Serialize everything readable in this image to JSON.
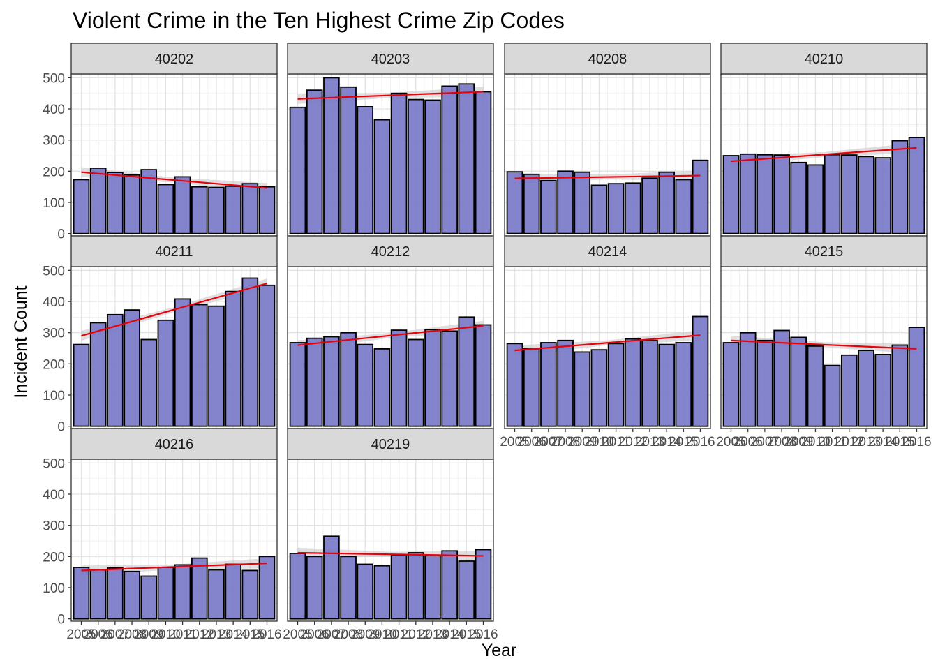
{
  "chart_data": {
    "type": "bar",
    "title": "Violent Crime in the Ten Highest Crime Zip Codes",
    "xlabel": "Year",
    "ylabel": "Incident Count",
    "ylim": [
      0,
      500
    ],
    "y_ticks": [
      0,
      100,
      200,
      300,
      400,
      500
    ],
    "x": [
      2005,
      2006,
      2007,
      2008,
      2009,
      2010,
      2011,
      2012,
      2013,
      2014,
      2015,
      2016
    ],
    "x_tick_labels": [
      "2005",
      "2006",
      "2007",
      "2008",
      "2009",
      "2010",
      "2011",
      "2012",
      "2013",
      "2014",
      "2015",
      "2016"
    ],
    "grid": true,
    "bar_fill": "#7a7ac9",
    "bar_outline": "#000000",
    "trend_color": "#e8000b",
    "band_color": "#c9c9c9",
    "strip_fill": "#d9d9d9",
    "panels": [
      {
        "name": "40202",
        "values": [
          173,
          210,
          196,
          188,
          205,
          157,
          182,
          150,
          148,
          152,
          160,
          150
        ],
        "trend": [
          197,
          146
        ]
      },
      {
        "name": "40203",
        "values": [
          405,
          460,
          500,
          470,
          407,
          365,
          450,
          430,
          428,
          473,
          480,
          455
        ],
        "trend": [
          432,
          455
        ]
      },
      {
        "name": "40208",
        "values": [
          198,
          190,
          170,
          200,
          197,
          155,
          160,
          162,
          178,
          197,
          173,
          235
        ],
        "trend": [
          177,
          186
        ]
      },
      {
        "name": "40210",
        "values": [
          250,
          255,
          253,
          252,
          228,
          220,
          253,
          252,
          247,
          243,
          298,
          308
        ],
        "trend": [
          232,
          275
        ]
      },
      {
        "name": "40211",
        "values": [
          262,
          332,
          358,
          373,
          278,
          340,
          408,
          390,
          385,
          432,
          475,
          452
        ],
        "trend": [
          290,
          458
        ]
      },
      {
        "name": "40212",
        "values": [
          268,
          282,
          287,
          300,
          262,
          248,
          308,
          278,
          310,
          305,
          350,
          325
        ],
        "trend": [
          260,
          322
        ]
      },
      {
        "name": "40214",
        "values": [
          265,
          248,
          268,
          275,
          238,
          245,
          265,
          280,
          275,
          262,
          268,
          352
        ],
        "trend": [
          243,
          292
        ]
      },
      {
        "name": "40215",
        "values": [
          268,
          300,
          275,
          307,
          285,
          257,
          195,
          228,
          243,
          230,
          260,
          317
        ],
        "trend": [
          275,
          248
        ]
      },
      {
        "name": "40216",
        "values": [
          165,
          157,
          163,
          152,
          137,
          165,
          173,
          195,
          157,
          175,
          155,
          200
        ],
        "trend": [
          155,
          178
        ]
      },
      {
        "name": "40219",
        "values": [
          210,
          200,
          265,
          200,
          175,
          170,
          205,
          212,
          203,
          218,
          185,
          222
        ],
        "trend": [
          212,
          202
        ]
      }
    ]
  }
}
